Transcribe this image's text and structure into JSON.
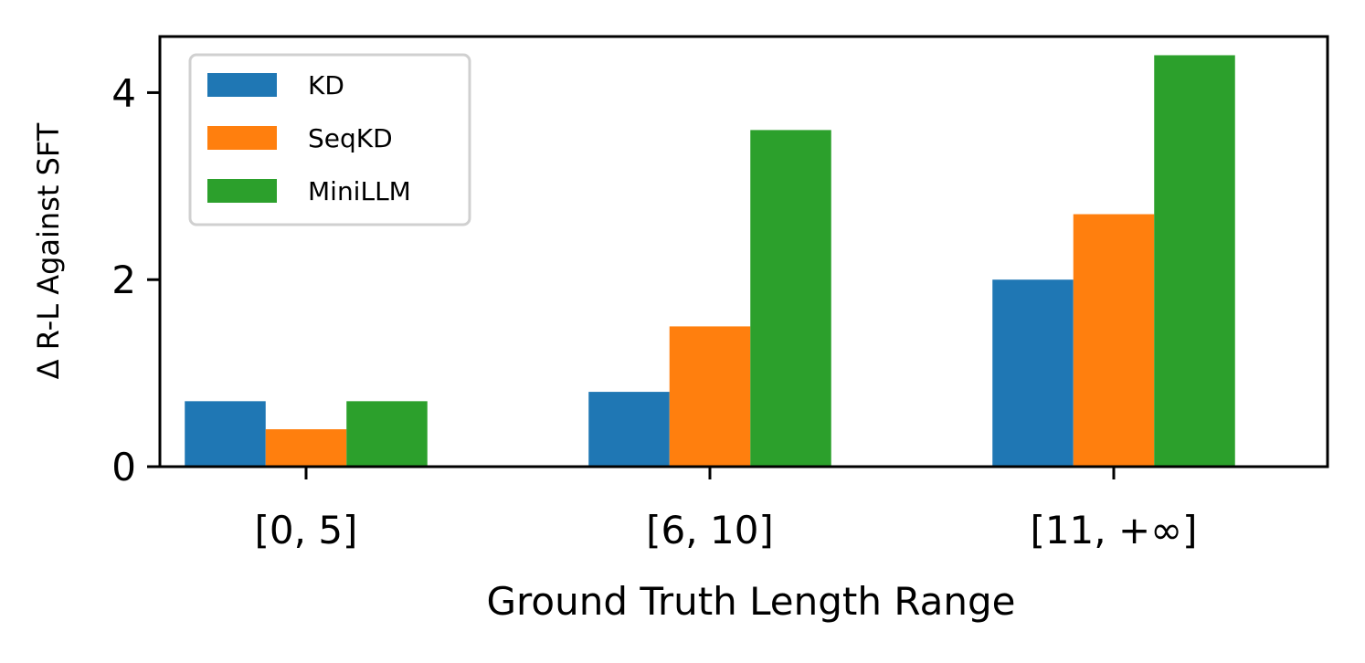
{
  "chart_data": {
    "type": "bar",
    "categories": [
      "[0, 5]",
      "[6, 10]",
      "[11, +∞]"
    ],
    "series": [
      {
        "name": "KD",
        "color": "#1f77b4",
        "values": [
          0.7,
          0.8,
          2.0
        ]
      },
      {
        "name": "SeqKD",
        "color": "#ff7f0e",
        "values": [
          0.4,
          1.5,
          2.7
        ]
      },
      {
        "name": "MiniLLM",
        "color": "#2ca02c",
        "values": [
          0.7,
          3.6,
          4.4
        ]
      }
    ],
    "title": "",
    "xlabel": "Ground Truth Length Range",
    "ylabel": "Δ R-L Against SFT",
    "ylim": [
      0,
      4.6
    ],
    "yticks": [
      0,
      2,
      4
    ],
    "ytick_labels": [
      "0",
      "2",
      "4"
    ],
    "grid": false,
    "legend_position": "upper-left"
  }
}
